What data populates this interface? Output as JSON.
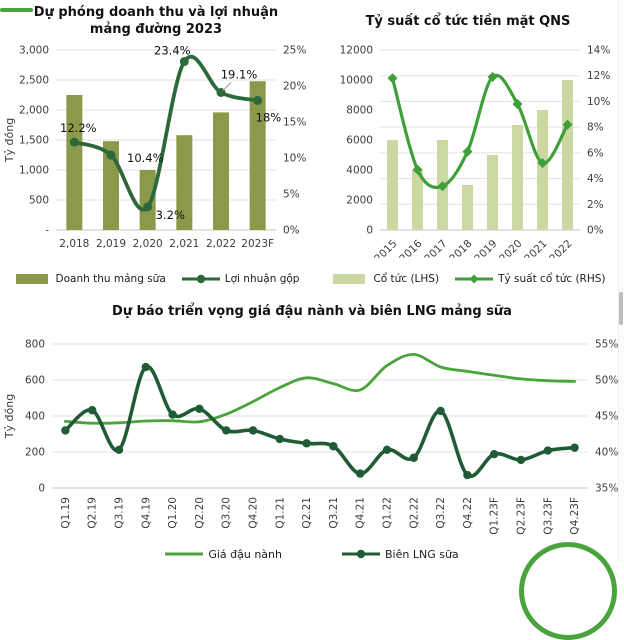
{
  "decor": {
    "top_left_dash": {
      "color": "#4aa43c"
    },
    "scrollbar_thumb": {
      "color": "#bdbdbd"
    },
    "corner_ring": {
      "color": "#4aa43c"
    }
  },
  "chart_data": [
    {
      "type": "bar+line",
      "title": "Dự phóng doanh thu và lợi nhuận mảng đường 2023",
      "ylabel": "Tỷ đồng",
      "categories": [
        "2,018",
        "2,019",
        "2,020",
        "2,021",
        "2,022",
        "2023F"
      ],
      "left_axis": {
        "ticks": [
          "3,000",
          "2,500",
          "2,000",
          "1,500",
          "1,000",
          "500",
          "-"
        ],
        "min": 0,
        "max": 3000
      },
      "right_axis": {
        "ticks": [
          "25%",
          "20%",
          "15%",
          "10%",
          "5%",
          "0%"
        ],
        "min": 0,
        "max": 25
      },
      "grid": "on",
      "legend_position": "bottom",
      "series": [
        {
          "name": "Doanh thu mảng sữa",
          "type": "bar",
          "axis": "left",
          "color": "#8a9a4a",
          "values": [
            2250,
            1480,
            1000,
            1580,
            1960,
            2480
          ]
        },
        {
          "name": "Lợi nhuận gộp",
          "type": "line",
          "axis": "right",
          "color": "#2c683a",
          "marker": "circle",
          "values": [
            12.2,
            10.4,
            3.2,
            23.4,
            19.1,
            18
          ],
          "point_labels": [
            "12.2%",
            "10.4%",
            "3.2%",
            "23.4%",
            "19.1%",
            "18%"
          ]
        }
      ]
    },
    {
      "type": "bar+line",
      "title": "Tỷ suất cổ tức tiền mặt QNS",
      "ylabel": "",
      "categories": [
        "2015",
        "2016",
        "2017",
        "2018",
        "2019",
        "2020",
        "2021",
        "2022"
      ],
      "left_axis": {
        "ticks": [
          "12000",
          "10000",
          "8000",
          "6000",
          "4000",
          "2000",
          "0"
        ],
        "min": 0,
        "max": 12000
      },
      "right_axis": {
        "ticks": [
          "14%",
          "12%",
          "10%",
          "8%",
          "6%",
          "4%",
          "2%",
          "0%"
        ],
        "min": 0,
        "max": 14
      },
      "grid": "on",
      "legend_position": "bottom",
      "series": [
        {
          "name": "Cổ tức (LHS)",
          "type": "bar",
          "axis": "left",
          "color": "#cbd8a1",
          "values": [
            6000,
            4000,
            6000,
            3000,
            5000,
            7000,
            8000,
            10000
          ]
        },
        {
          "name": "Tỷ suất cổ tức (RHS)",
          "type": "line",
          "axis": "right",
          "color": "#3f9f38",
          "marker": "diamond",
          "values": [
            11.8,
            4.7,
            3.4,
            6.1,
            11.9,
            9.8,
            5.2,
            8.2
          ]
        }
      ]
    },
    {
      "type": "line",
      "title": "Dự báo triển vọng giá đậu nành và biên LNG mảng sữa",
      "ylabel": "Tỷ đồng",
      "categories": [
        "Q1.19",
        "Q2.19",
        "Q3.19",
        "Q4.19",
        "Q1.20",
        "Q2.20",
        "Q3.20",
        "Q4.20",
        "Q1.21",
        "Q2.21",
        "Q3.21",
        "Q4.21",
        "Q1.22",
        "Q2.22",
        "Q3.22",
        "Q4.22",
        "Q1.23F",
        "Q2.23F",
        "Q3.23F",
        "Q4.23F"
      ],
      "left_axis": {
        "ticks": [
          "800",
          "600",
          "400",
          "200",
          "0"
        ],
        "min": 0,
        "max": 800
      },
      "right_axis": {
        "ticks": [
          "55%",
          "50%",
          "45%",
          "40%",
          "35%"
        ],
        "min": 35,
        "max": 55
      },
      "grid": "on",
      "legend_position": "bottom",
      "series": [
        {
          "name": "Giá đậu nành",
          "type": "line",
          "axis": "left",
          "color": "#4aa43c",
          "marker": null,
          "values": [
            370,
            360,
            362,
            372,
            374,
            368,
            410,
            480,
            558,
            612,
            580,
            545,
            680,
            742,
            672,
            648,
            626,
            606,
            596,
            592
          ]
        },
        {
          "name": "Biên LNG sữa",
          "type": "line",
          "axis": "right",
          "color": "#215b35",
          "marker": "circle",
          "values": [
            43.0,
            45.8,
            40.3,
            51.8,
            45.2,
            46.0,
            43.0,
            43.0,
            41.8,
            41.2,
            40.8,
            37.0,
            40.3,
            39.2,
            45.7,
            36.8,
            39.7,
            38.9,
            40.2,
            40.6
          ]
        }
      ]
    }
  ]
}
